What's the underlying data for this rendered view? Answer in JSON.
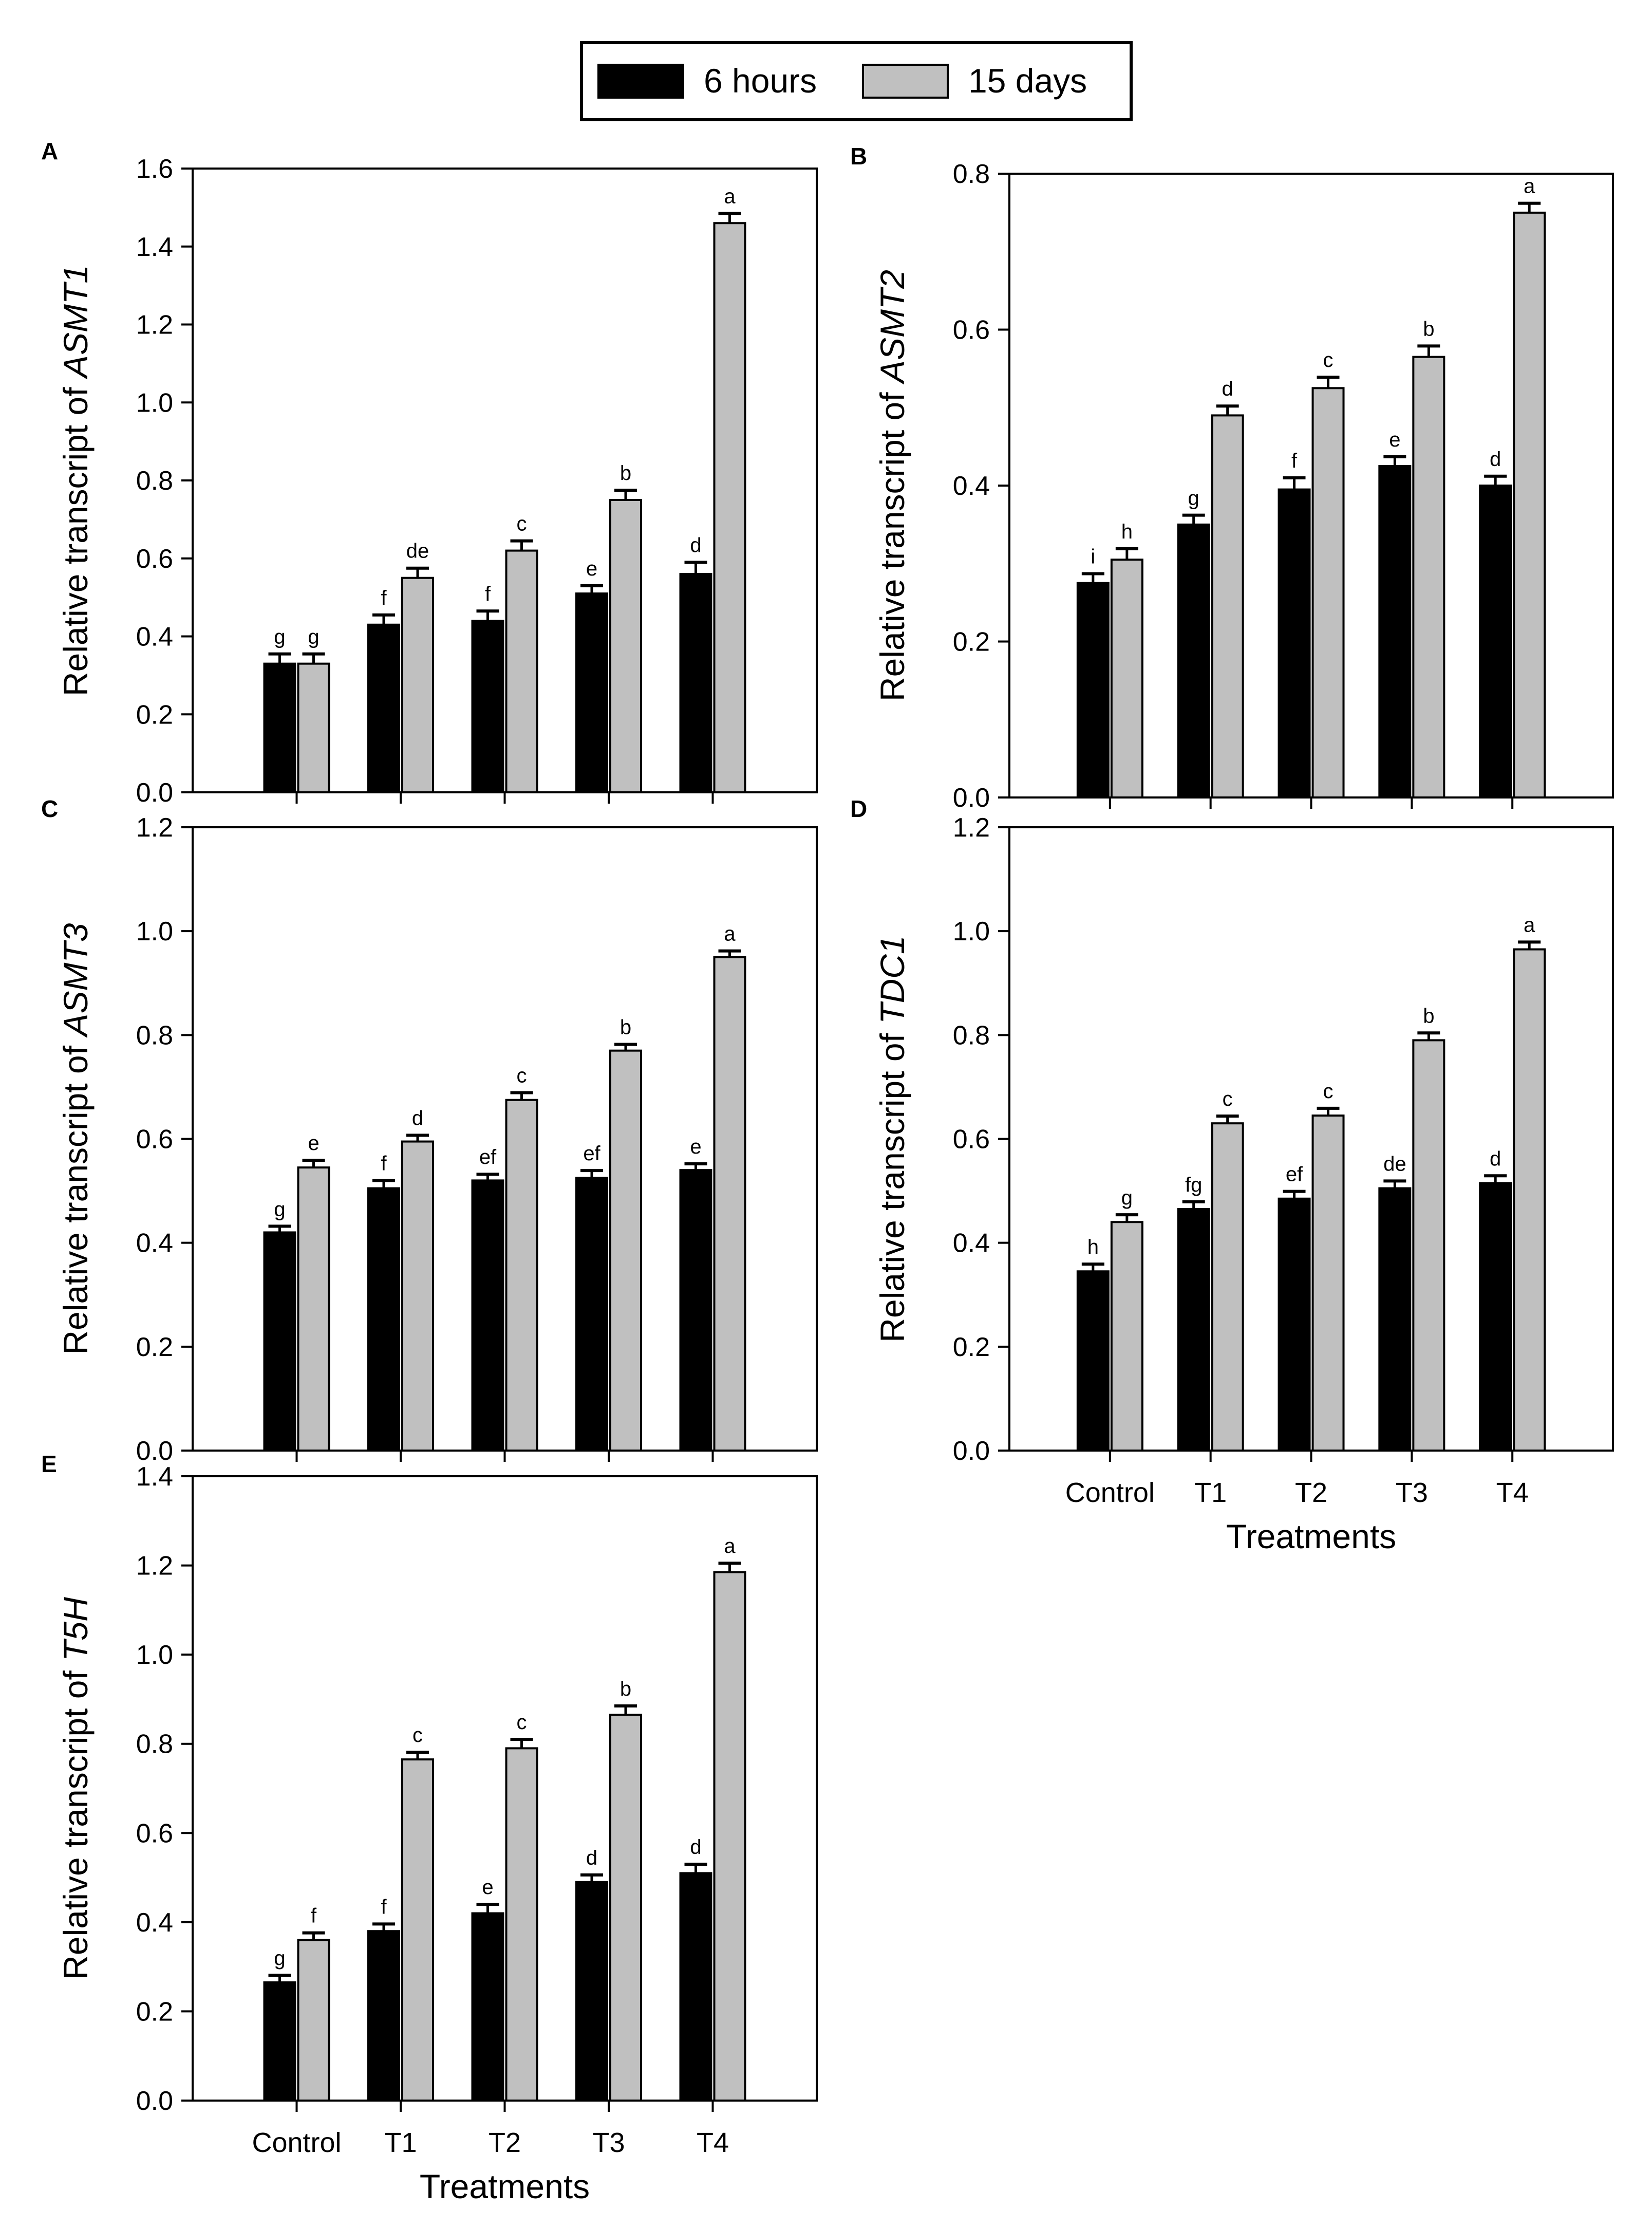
{
  "legend": {
    "items": [
      {
        "label": "6 hours",
        "color": "#000000"
      },
      {
        "label": "15 days",
        "color": "#c0c0c0"
      }
    ]
  },
  "colors": {
    "series_6h": "#000000",
    "series_15d": "#c0c0c0",
    "axis": "#000000"
  },
  "chart_data": [
    {
      "panel": "A",
      "type": "bar",
      "title": "",
      "ylabel_prefix": "Relative transcript of ",
      "ylabel_gene": "ASMT1",
      "xlabel": "",
      "categories": [
        "Control",
        "T1",
        "T2",
        "T3",
        "T4"
      ],
      "show_category_labels": false,
      "ylim": [
        0,
        1.6
      ],
      "yticks": [
        "0.0",
        "0.2",
        "0.4",
        "0.6",
        "0.8",
        "1.0",
        "1.2",
        "1.4",
        "1.6"
      ],
      "series": [
        {
          "name": "6 hours",
          "values": [
            0.33,
            0.43,
            0.44,
            0.51,
            0.56
          ],
          "errors": [
            0.025,
            0.025,
            0.025,
            0.02,
            0.03
          ],
          "letters": [
            "g",
            "f",
            "f",
            "e",
            "d"
          ]
        },
        {
          "name": "15 days",
          "values": [
            0.33,
            0.55,
            0.62,
            0.75,
            1.46
          ],
          "errors": [
            0.025,
            0.025,
            0.025,
            0.025,
            0.025
          ],
          "letters": [
            "g",
            "de",
            "c",
            "b",
            "a"
          ]
        }
      ]
    },
    {
      "panel": "B",
      "type": "bar",
      "title": "",
      "ylabel_prefix": "Relative transcript of ",
      "ylabel_gene": "ASMT2",
      "xlabel": "",
      "categories": [
        "Control",
        "T1",
        "T2",
        "T3",
        "T4"
      ],
      "show_category_labels": false,
      "ylim": [
        0,
        0.8
      ],
      "yticks": [
        "0.0",
        "0.2",
        "0.4",
        "0.6",
        "0.8"
      ],
      "series": [
        {
          "name": "6 hours",
          "values": [
            0.275,
            0.35,
            0.395,
            0.425,
            0.4
          ],
          "errors": [
            0.012,
            0.012,
            0.015,
            0.012,
            0.012
          ],
          "letters": [
            "i",
            "g",
            "f",
            "e",
            "d"
          ]
        },
        {
          "name": "15 days",
          "values": [
            0.305,
            0.49,
            0.525,
            0.565,
            0.75
          ],
          "errors": [
            0.014,
            0.012,
            0.014,
            0.014,
            0.012
          ],
          "letters": [
            "h",
            "d",
            "c",
            "b",
            "a"
          ]
        }
      ]
    },
    {
      "panel": "C",
      "type": "bar",
      "title": "",
      "ylabel_prefix": "Relative transcript of ",
      "ylabel_gene": "ASMT3",
      "xlabel": "",
      "categories": [
        "Control",
        "T1",
        "T2",
        "T3",
        "T4"
      ],
      "show_category_labels": false,
      "ylim": [
        0,
        1.2
      ],
      "yticks": [
        "0.0",
        "0.2",
        "0.4",
        "0.6",
        "0.8",
        "1.0",
        "1.2"
      ],
      "series": [
        {
          "name": "6 hours",
          "values": [
            0.42,
            0.505,
            0.52,
            0.525,
            0.54
          ],
          "errors": [
            0.012,
            0.015,
            0.012,
            0.014,
            0.012
          ],
          "letters": [
            "g",
            "f",
            "ef",
            "ef",
            "e"
          ]
        },
        {
          "name": "15 days",
          "values": [
            0.545,
            0.595,
            0.675,
            0.77,
            0.95
          ],
          "errors": [
            0.014,
            0.012,
            0.014,
            0.012,
            0.012
          ],
          "letters": [
            "e",
            "d",
            "c",
            "b",
            "a"
          ]
        }
      ]
    },
    {
      "panel": "D",
      "type": "bar",
      "title": "",
      "ylabel_prefix": "Relative transcript of ",
      "ylabel_gene": "TDC1",
      "xlabel": "Treatments",
      "categories": [
        "Control",
        "T1",
        "T2",
        "T3",
        "T4"
      ],
      "show_category_labels": true,
      "ylim": [
        0,
        1.2
      ],
      "yticks": [
        "0.0",
        "0.2",
        "0.4",
        "0.6",
        "0.8",
        "1.0",
        "1.2"
      ],
      "series": [
        {
          "name": "6 hours",
          "values": [
            0.345,
            0.465,
            0.485,
            0.505,
            0.515
          ],
          "errors": [
            0.014,
            0.014,
            0.014,
            0.014,
            0.014
          ],
          "letters": [
            "h",
            "fg",
            "ef",
            "de",
            "d"
          ]
        },
        {
          "name": "15 days",
          "values": [
            0.44,
            0.63,
            0.645,
            0.79,
            0.965
          ],
          "errors": [
            0.014,
            0.014,
            0.014,
            0.014,
            0.014
          ],
          "letters": [
            "g",
            "c",
            "c",
            "b",
            "a"
          ]
        }
      ]
    },
    {
      "panel": "E",
      "type": "bar",
      "title": "",
      "ylabel_prefix": "Relative transcript of ",
      "ylabel_gene": "T5H",
      "xlabel": "Treatments",
      "categories": [
        "Control",
        "T1",
        "T2",
        "T3",
        "T4"
      ],
      "show_category_labels": true,
      "ylim": [
        0,
        1.4
      ],
      "yticks": [
        "0.0",
        "0.2",
        "0.4",
        "0.6",
        "0.8",
        "1.0",
        "1.2",
        "1.4"
      ],
      "series": [
        {
          "name": "6 hours",
          "values": [
            0.265,
            0.38,
            0.42,
            0.49,
            0.51
          ],
          "errors": [
            0.016,
            0.016,
            0.02,
            0.016,
            0.02
          ],
          "letters": [
            "g",
            "f",
            "e",
            "d",
            "d"
          ]
        },
        {
          "name": "15 days",
          "values": [
            0.36,
            0.765,
            0.79,
            0.865,
            1.185
          ],
          "errors": [
            0.016,
            0.016,
            0.02,
            0.02,
            0.02
          ],
          "letters": [
            "f",
            "c",
            "c",
            "b",
            "a"
          ]
        }
      ]
    }
  ]
}
